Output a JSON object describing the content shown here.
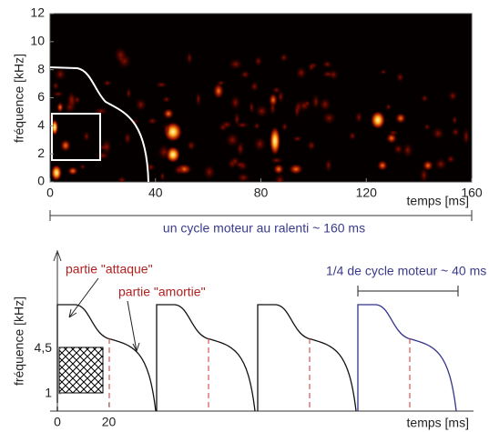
{
  "chart_data": [
    {
      "type": "spectrogram",
      "xlabel": "temps [ms]",
      "ylabel": "fréquence [kHz]",
      "xlim": [
        0,
        160
      ],
      "xticks": [
        0,
        40,
        80,
        120,
        160
      ],
      "ylim": [
        0,
        12
      ],
      "yticks": [
        0,
        2,
        4,
        6,
        8,
        10,
        12
      ],
      "annotation": "un cycle moteur au ralenti   ~ 160 ms"
    },
    {
      "type": "schematic",
      "xlabel": "temps [ms]",
      "ylabel": "fréquence [kHz]",
      "xlim": [
        0,
        160
      ],
      "xticks": [
        0,
        20
      ],
      "ylim": [
        0,
        12
      ],
      "yticks": [
        1,
        {
          "value": 4.5,
          "label": "4,5"
        }
      ],
      "annotations": [
        "partie \"attaque\"",
        "partie \"amortie\"",
        "1/4 de cycle moteur   ~ 40 ms"
      ]
    }
  ]
}
